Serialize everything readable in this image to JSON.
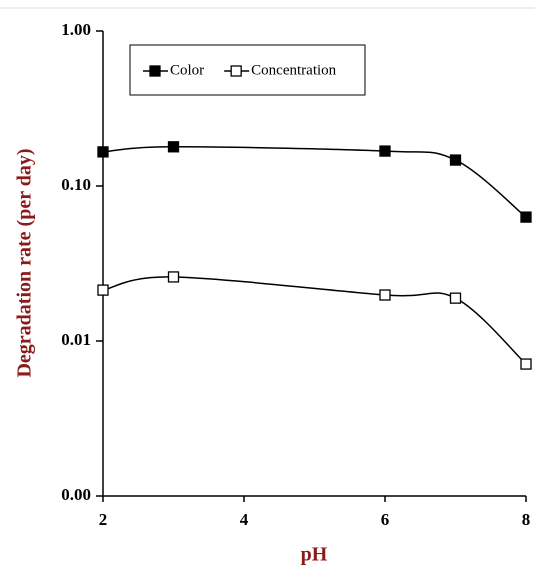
{
  "chart_data": {
    "type": "line",
    "x_label": "pH",
    "y_label": "Degradation rate (per day)",
    "x": [
      2,
      3,
      6,
      7,
      8
    ],
    "series": [
      {
        "name": "Color",
        "color": "#000000",
        "marker": "filled-square",
        "values": [
          0.166,
          0.179,
          0.168,
          0.147,
          0.063
        ]
      },
      {
        "name": "Concentration",
        "color": "#000000",
        "marker": "open-square",
        "values": [
          0.0213,
          0.0259,
          0.0198,
          0.0189,
          0.0071
        ]
      }
    ],
    "xlim": [
      2,
      8
    ],
    "xticks": [
      2,
      4,
      6,
      8
    ],
    "ylim": [
      0.001,
      1
    ],
    "log_y": true,
    "yticks": [
      {
        "value": 0.001,
        "label": "0.00"
      },
      {
        "value": 0.01,
        "label": "0.01"
      },
      {
        "value": 0.1,
        "label": "0.10"
      },
      {
        "value": 1,
        "label": "1.00"
      }
    ],
    "grid": false,
    "legend": "top-left"
  }
}
